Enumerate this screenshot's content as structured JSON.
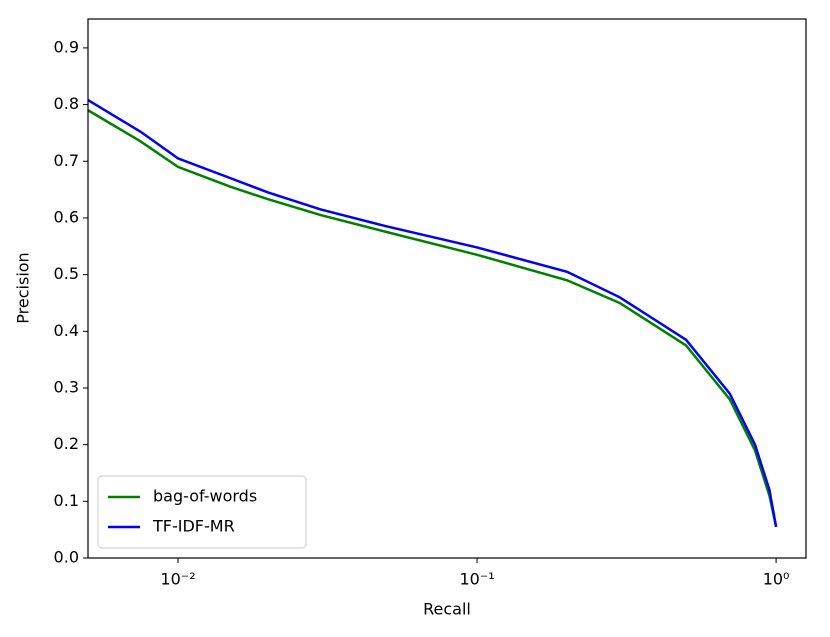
{
  "chart_data": {
    "type": "line",
    "xlabel": "Recall",
    "ylabel": "Precision",
    "x": [
      0.005,
      0.0075,
      0.01,
      0.015,
      0.02,
      0.03,
      0.05,
      0.1,
      0.2,
      0.3,
      0.5,
      0.7,
      0.85,
      0.95,
      1.0
    ],
    "series": [
      {
        "name": "bag-of-words",
        "color": "#008000",
        "values": [
          0.79,
          0.735,
          0.69,
          0.655,
          0.633,
          0.605,
          0.575,
          0.535,
          0.49,
          0.45,
          0.375,
          0.28,
          0.19,
          0.11,
          0.055
        ]
      },
      {
        "name": "TF-IDF-MR",
        "color": "#0000ff",
        "values": [
          0.808,
          0.752,
          0.705,
          0.67,
          0.645,
          0.615,
          0.585,
          0.548,
          0.505,
          0.46,
          0.385,
          0.29,
          0.2,
          0.12,
          0.055
        ]
      }
    ],
    "xscale": "log",
    "xlim": [
      0.005,
      1.259
    ],
    "xticks": [
      {
        "value": 0.01,
        "label": "10⁻²"
      },
      {
        "value": 0.1,
        "label": "10⁻¹"
      },
      {
        "value": 1,
        "label": "10⁰"
      }
    ],
    "ylim": [
      0,
      0.951
    ],
    "yticks": [
      {
        "value": 0,
        "label": "0.0"
      },
      0.1,
      0.2,
      0.3,
      0.4,
      0.5,
      0.6,
      0.7,
      0.8,
      0.9
    ],
    "grid": false,
    "legend": "lower left"
  }
}
